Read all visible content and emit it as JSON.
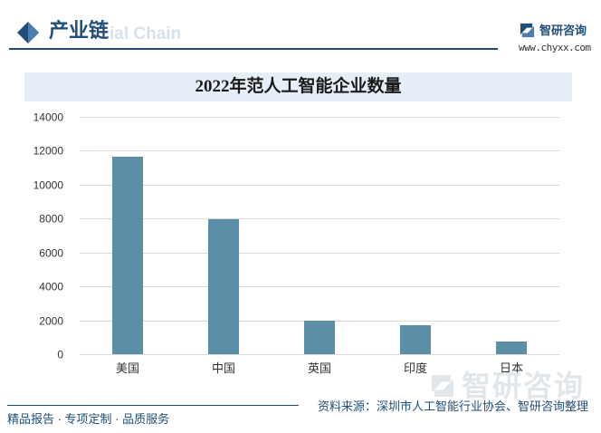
{
  "header": {
    "section_icon": "diamond-icon",
    "section_title": "产业链",
    "section_bg_text": "ial Chain",
    "brand_icon": "chyxx-logo-icon",
    "brand_name": "智研咨询",
    "brand_url": "www.chyxx.com"
  },
  "chart_data": {
    "type": "bar",
    "title": "2022年范人工智能企业数量",
    "categories": [
      "美国",
      "中国",
      "英国",
      "印度",
      "日本"
    ],
    "values": [
      11650,
      7960,
      1990,
      1710,
      750
    ],
    "ylim": [
      0,
      14000
    ],
    "yticks": [
      0,
      2000,
      4000,
      6000,
      8000,
      10000,
      12000,
      14000
    ],
    "grid": true
  },
  "footer": {
    "tagline": "精品报告 · 专项定制 · 品质服务",
    "source": "资料来源：深圳市人工智能行业协会、智研咨询整理",
    "watermark_icon": "chyxx-logo-icon",
    "watermark_text": "智研咨询"
  },
  "colors": {
    "brand": "#1f4e79",
    "accent": "#4a7fb0",
    "title_bar_bg": "#e6eff7",
    "bar": "#5b8fa7",
    "gridline": "#d9d9d9",
    "section_bg_text": "#d8e1ea",
    "watermark": "#e1e6ea"
  }
}
